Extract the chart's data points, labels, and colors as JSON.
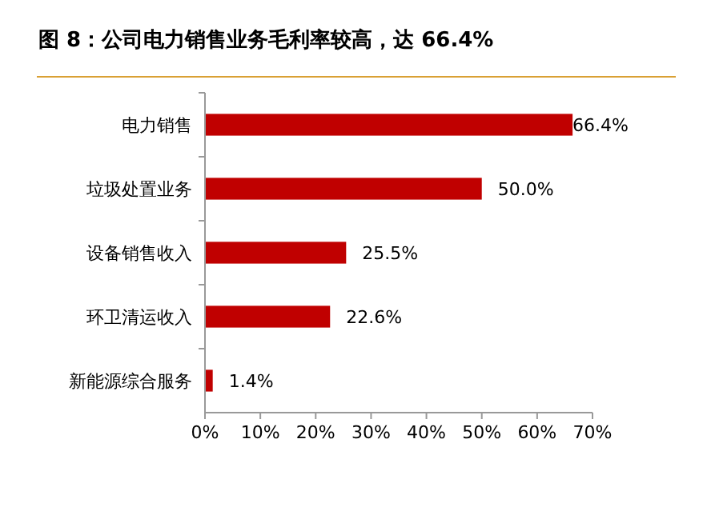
{
  "chart_data": {
    "type": "bar",
    "orientation": "horizontal",
    "title": "图 8：公司电力销售业务毛利率较高，达 66.4%",
    "categories": [
      "电力销售",
      "垃圾处置业务",
      "设备销售收入",
      "环卫清运收入",
      "新能源综合服务"
    ],
    "values": [
      66.4,
      50.0,
      25.5,
      22.6,
      1.4
    ],
    "value_labels": [
      "66.4%",
      "50.0%",
      "25.5%",
      "22.6%",
      "1.4%"
    ],
    "color": "#c00000",
    "xlim": [
      0,
      70
    ],
    "xticks": [
      {
        "value": 0,
        "label": "0%"
      },
      {
        "value": 10,
        "label": "10%"
      },
      {
        "value": 20,
        "label": "20%"
      },
      {
        "value": 30,
        "label": "30%"
      },
      {
        "value": 40,
        "label": "40%"
      },
      {
        "value": 50,
        "label": "50%"
      },
      {
        "value": 60,
        "label": "60%"
      },
      {
        "value": 70,
        "label": "70%"
      }
    ],
    "grid": false
  }
}
